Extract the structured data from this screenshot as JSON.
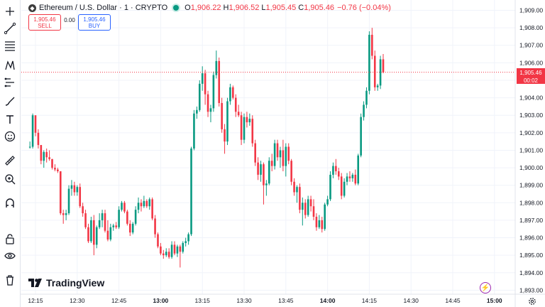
{
  "header": {
    "symbol_icon": "ethereum-icon",
    "title": "Ethereum / U.S. Dollar · 1 · CRYPTO",
    "ohlc": [
      {
        "k": "O",
        "v": "1,906.22"
      },
      {
        "k": "H",
        "v": "1,906.52"
      },
      {
        "k": "L",
        "v": "1,905.45"
      },
      {
        "k": "C",
        "v": "1,905.46"
      }
    ],
    "change": "−0.76 (−0.04%)"
  },
  "trade": {
    "sell_price": "1,905.46",
    "sell_label": "SELL",
    "spread": "0.00",
    "buy_price": "1,905.46",
    "buy_label": "BUY"
  },
  "price_badge": {
    "price": "1,905.46",
    "countdown": "00:02"
  },
  "branding": {
    "logo_text": "TradingView"
  },
  "toolbar": {
    "icons": [
      "crosshair-icon",
      "trend-line-icon",
      "fib-retracement-icon",
      "pattern-icon",
      "forecast-icon",
      "brush-icon",
      "text-icon",
      "emoji-icon",
      "measure-icon",
      "zoom-in-icon",
      "magnet-icon",
      "lock-icon",
      "eye-icon",
      "trash-icon"
    ]
  },
  "colors": {
    "up": "#089981",
    "down": "#f23645",
    "grid": "#f0f3fa",
    "text": "#131722",
    "axis_text": "#131722"
  },
  "chart_data": {
    "type": "candlestick",
    "symbol": "ETHUSD",
    "interval": "1",
    "xlabel": "",
    "ylabel": "",
    "ylim": [
      1892.75,
      1909.3
    ],
    "y_ticks": [
      "1,893.00",
      "1,894.00",
      "1,895.00",
      "1,896.00",
      "1,897.00",
      "1,898.00",
      "1,899.00",
      "1,900.00",
      "1,901.00",
      "1,902.00",
      "1,903.00",
      "1,904.00",
      "1,905.00",
      "1,906.00",
      "1,907.00",
      "1,908.00",
      "1,909.00"
    ],
    "x_ticks": [
      "12:15",
      "12:30",
      "12:45",
      "13:00",
      "13:15",
      "13:30",
      "13:45",
      "14:00",
      "14:15",
      "14:30",
      "14:45",
      "15:00"
    ],
    "x_tick_bold": [
      "13:00",
      "14:00",
      "15:00"
    ],
    "start": "12:13",
    "last_price": 1905.46,
    "ohlc": [
      [
        1901.2,
        1901.5,
        1901.1,
        1901.2
      ],
      [
        1901.2,
        1903.1,
        1901.1,
        1903.0
      ],
      [
        1903.0,
        1903.0,
        1901.8,
        1902.0
      ],
      [
        1902.0,
        1902.2,
        1901.1,
        1901.3
      ],
      [
        1901.3,
        1901.3,
        1900.2,
        1900.4
      ],
      [
        1900.4,
        1901.0,
        1900.0,
        1900.9
      ],
      [
        1900.9,
        1901.1,
        1900.3,
        1900.6
      ],
      [
        1900.6,
        1901.0,
        1900.4,
        1900.5
      ],
      [
        1900.5,
        1900.5,
        1899.9,
        1900.0
      ],
      [
        1900.0,
        1900.2,
        1899.8,
        1899.9
      ],
      [
        1899.9,
        1900.0,
        1899.7,
        1899.8
      ],
      [
        1899.8,
        1899.8,
        1897.3,
        1897.4
      ],
      [
        1897.4,
        1897.6,
        1896.8,
        1897.3
      ],
      [
        1897.3,
        1897.6,
        1897.0,
        1897.4
      ],
      [
        1897.4,
        1899.0,
        1897.3,
        1898.8
      ],
      [
        1898.8,
        1899.3,
        1898.4,
        1899.0
      ],
      [
        1899.0,
        1899.2,
        1898.4,
        1898.6
      ],
      [
        1898.6,
        1899.0,
        1898.4,
        1898.9
      ],
      [
        1898.9,
        1899.1,
        1897.7,
        1897.8
      ],
      [
        1897.8,
        1898.0,
        1897.2,
        1897.4
      ],
      [
        1897.4,
        1897.6,
        1896.5,
        1896.6
      ],
      [
        1896.6,
        1896.8,
        1895.7,
        1895.8
      ],
      [
        1895.8,
        1897.2,
        1895.7,
        1897.0
      ],
      [
        1897.0,
        1897.3,
        1895.0,
        1895.6
      ],
      [
        1895.6,
        1896.7,
        1895.4,
        1896.6
      ],
      [
        1896.6,
        1897.4,
        1896.5,
        1897.0
      ],
      [
        1897.0,
        1897.6,
        1896.6,
        1897.4
      ],
      [
        1897.4,
        1897.6,
        1896.3,
        1896.4
      ],
      [
        1896.4,
        1897.0,
        1895.8,
        1895.9
      ],
      [
        1895.9,
        1896.8,
        1895.8,
        1896.6
      ],
      [
        1896.6,
        1896.8,
        1896.4,
        1896.7
      ],
      [
        1896.7,
        1896.9,
        1896.5,
        1896.6
      ],
      [
        1896.6,
        1897.8,
        1896.5,
        1897.6
      ],
      [
        1897.6,
        1898.1,
        1897.5,
        1898.0
      ],
      [
        1898.0,
        1898.1,
        1897.4,
        1897.5
      ],
      [
        1897.5,
        1897.6,
        1896.7,
        1896.8
      ],
      [
        1896.8,
        1897.0,
        1896.1,
        1896.3
      ],
      [
        1896.3,
        1896.9,
        1896.2,
        1896.8
      ],
      [
        1896.8,
        1897.8,
        1896.7,
        1897.6
      ],
      [
        1897.6,
        1898.3,
        1897.4,
        1898.0
      ],
      [
        1898.0,
        1898.2,
        1897.5,
        1897.8
      ],
      [
        1897.8,
        1898.4,
        1897.7,
        1898.1
      ],
      [
        1898.1,
        1898.2,
        1897.7,
        1897.8
      ],
      [
        1897.8,
        1898.3,
        1897.6,
        1898.2
      ],
      [
        1898.2,
        1898.3,
        1897.0,
        1897.1
      ],
      [
        1897.1,
        1897.3,
        1896.0,
        1896.2
      ],
      [
        1896.2,
        1896.3,
        1895.4,
        1895.5
      ],
      [
        1895.5,
        1895.7,
        1895.0,
        1895.1
      ],
      [
        1895.1,
        1895.3,
        1894.8,
        1895.0
      ],
      [
        1895.0,
        1895.4,
        1894.9,
        1895.2
      ],
      [
        1895.2,
        1895.4,
        1894.8,
        1894.9
      ],
      [
        1894.9,
        1895.8,
        1894.8,
        1895.6
      ],
      [
        1895.6,
        1895.8,
        1895.0,
        1895.1
      ],
      [
        1895.1,
        1895.6,
        1894.9,
        1895.5
      ],
      [
        1895.5,
        1895.6,
        1894.3,
        1895.2
      ],
      [
        1895.2,
        1895.8,
        1895.1,
        1895.7
      ],
      [
        1895.7,
        1896.0,
        1895.5,
        1895.8
      ],
      [
        1895.8,
        1896.3,
        1895.6,
        1896.2
      ],
      [
        1896.2,
        1901.2,
        1896.1,
        1901.1
      ],
      [
        1901.1,
        1903.3,
        1901.0,
        1903.1
      ],
      [
        1903.1,
        1903.5,
        1902.8,
        1903.3
      ],
      [
        1903.3,
        1905.0,
        1903.2,
        1904.8
      ],
      [
        1904.8,
        1905.8,
        1904.4,
        1905.4
      ],
      [
        1905.4,
        1905.6,
        1903.6,
        1904.2
      ],
      [
        1904.2,
        1904.4,
        1902.9,
        1903.2
      ],
      [
        1903.2,
        1903.6,
        1902.6,
        1903.4
      ],
      [
        1903.4,
        1905.5,
        1903.2,
        1905.3
      ],
      [
        1905.3,
        1906.7,
        1905.1,
        1906.1
      ],
      [
        1906.1,
        1906.3,
        1903.5,
        1903.7
      ],
      [
        1903.7,
        1904.0,
        1902.0,
        1902.2
      ],
      [
        1902.2,
        1902.5,
        1900.8,
        1901.5
      ],
      [
        1901.5,
        1904.0,
        1901.3,
        1903.8
      ],
      [
        1903.8,
        1904.8,
        1903.6,
        1904.6
      ],
      [
        1904.6,
        1904.7,
        1903.9,
        1904.0
      ],
      [
        1904.0,
        1904.2,
        1902.9,
        1903.2
      ],
      [
        1903.2,
        1903.6,
        1902.9,
        1903.0
      ],
      [
        1903.0,
        1903.2,
        1901.3,
        1901.6
      ],
      [
        1901.6,
        1903.1,
        1901.4,
        1902.9
      ],
      [
        1902.9,
        1903.2,
        1902.3,
        1902.6
      ],
      [
        1902.6,
        1903.1,
        1902.4,
        1902.8
      ],
      [
        1902.8,
        1903.0,
        1901.2,
        1901.4
      ],
      [
        1901.4,
        1901.6,
        1900.1,
        1900.3
      ],
      [
        1900.3,
        1900.6,
        1899.3,
        1899.6
      ],
      [
        1899.6,
        1900.4,
        1899.2,
        1900.2
      ],
      [
        1900.2,
        1900.3,
        1897.9,
        1899.0
      ],
      [
        1899.0,
        1899.3,
        1898.4,
        1899.1
      ],
      [
        1899.1,
        1900.6,
        1899.0,
        1900.4
      ],
      [
        1900.4,
        1900.8,
        1899.8,
        1900.1
      ],
      [
        1900.1,
        1901.6,
        1899.9,
        1901.4
      ],
      [
        1901.4,
        1901.6,
        1900.4,
        1900.6
      ],
      [
        1900.6,
        1901.2,
        1900.0,
        1901.0
      ],
      [
        1901.0,
        1901.6,
        1899.8,
        1900.1
      ],
      [
        1900.1,
        1901.4,
        1899.5,
        1901.2
      ],
      [
        1901.2,
        1901.4,
        1900.2,
        1900.4
      ],
      [
        1900.4,
        1900.5,
        1899.0,
        1899.2
      ],
      [
        1899.2,
        1899.4,
        1898.4,
        1898.6
      ],
      [
        1898.6,
        1899.0,
        1898.0,
        1898.9
      ],
      [
        1898.9,
        1899.1,
        1897.4,
        1897.6
      ],
      [
        1897.6,
        1898.3,
        1896.7,
        1898.0
      ],
      [
        1898.0,
        1898.2,
        1897.1,
        1897.3
      ],
      [
        1897.3,
        1898.4,
        1897.2,
        1898.2
      ],
      [
        1898.2,
        1898.4,
        1897.5,
        1897.8
      ],
      [
        1897.8,
        1898.2,
        1897.0,
        1897.2
      ],
      [
        1897.2,
        1897.4,
        1896.4,
        1896.6
      ],
      [
        1896.6,
        1897.3,
        1896.5,
        1897.0
      ],
      [
        1897.0,
        1897.2,
        1896.3,
        1896.5
      ],
      [
        1896.5,
        1898.0,
        1896.4,
        1897.9
      ],
      [
        1897.9,
        1898.4,
        1897.8,
        1898.2
      ],
      [
        1898.2,
        1899.8,
        1898.1,
        1899.6
      ],
      [
        1899.6,
        1900.3,
        1899.4,
        1900.1
      ],
      [
        1900.1,
        1900.5,
        1899.6,
        1899.8
      ],
      [
        1899.8,
        1900.0,
        1899.3,
        1899.5
      ],
      [
        1899.5,
        1899.7,
        1898.2,
        1898.4
      ],
      [
        1898.4,
        1899.4,
        1898.3,
        1899.2
      ],
      [
        1899.2,
        1899.7,
        1899.0,
        1899.5
      ],
      [
        1899.5,
        1899.8,
        1899.2,
        1899.4
      ],
      [
        1899.4,
        1899.7,
        1899.2,
        1899.6
      ],
      [
        1899.6,
        1899.9,
        1899.0,
        1899.1
      ],
      [
        1899.1,
        1900.8,
        1899.0,
        1900.7
      ],
      [
        1900.7,
        1903.1,
        1900.6,
        1902.9
      ],
      [
        1902.9,
        1903.8,
        1902.7,
        1903.6
      ],
      [
        1903.6,
        1904.6,
        1903.4,
        1904.4
      ],
      [
        1904.4,
        1907.8,
        1904.2,
        1907.6
      ],
      [
        1907.6,
        1908.0,
        1906.2,
        1906.4
      ],
      [
        1906.4,
        1906.7,
        1904.4,
        1904.6
      ],
      [
        1904.6,
        1904.8,
        1904.4,
        1904.7
      ],
      [
        1904.7,
        1906.4,
        1904.5,
        1906.2
      ],
      [
        1906.2,
        1906.5,
        1905.4,
        1905.46
      ]
    ]
  }
}
